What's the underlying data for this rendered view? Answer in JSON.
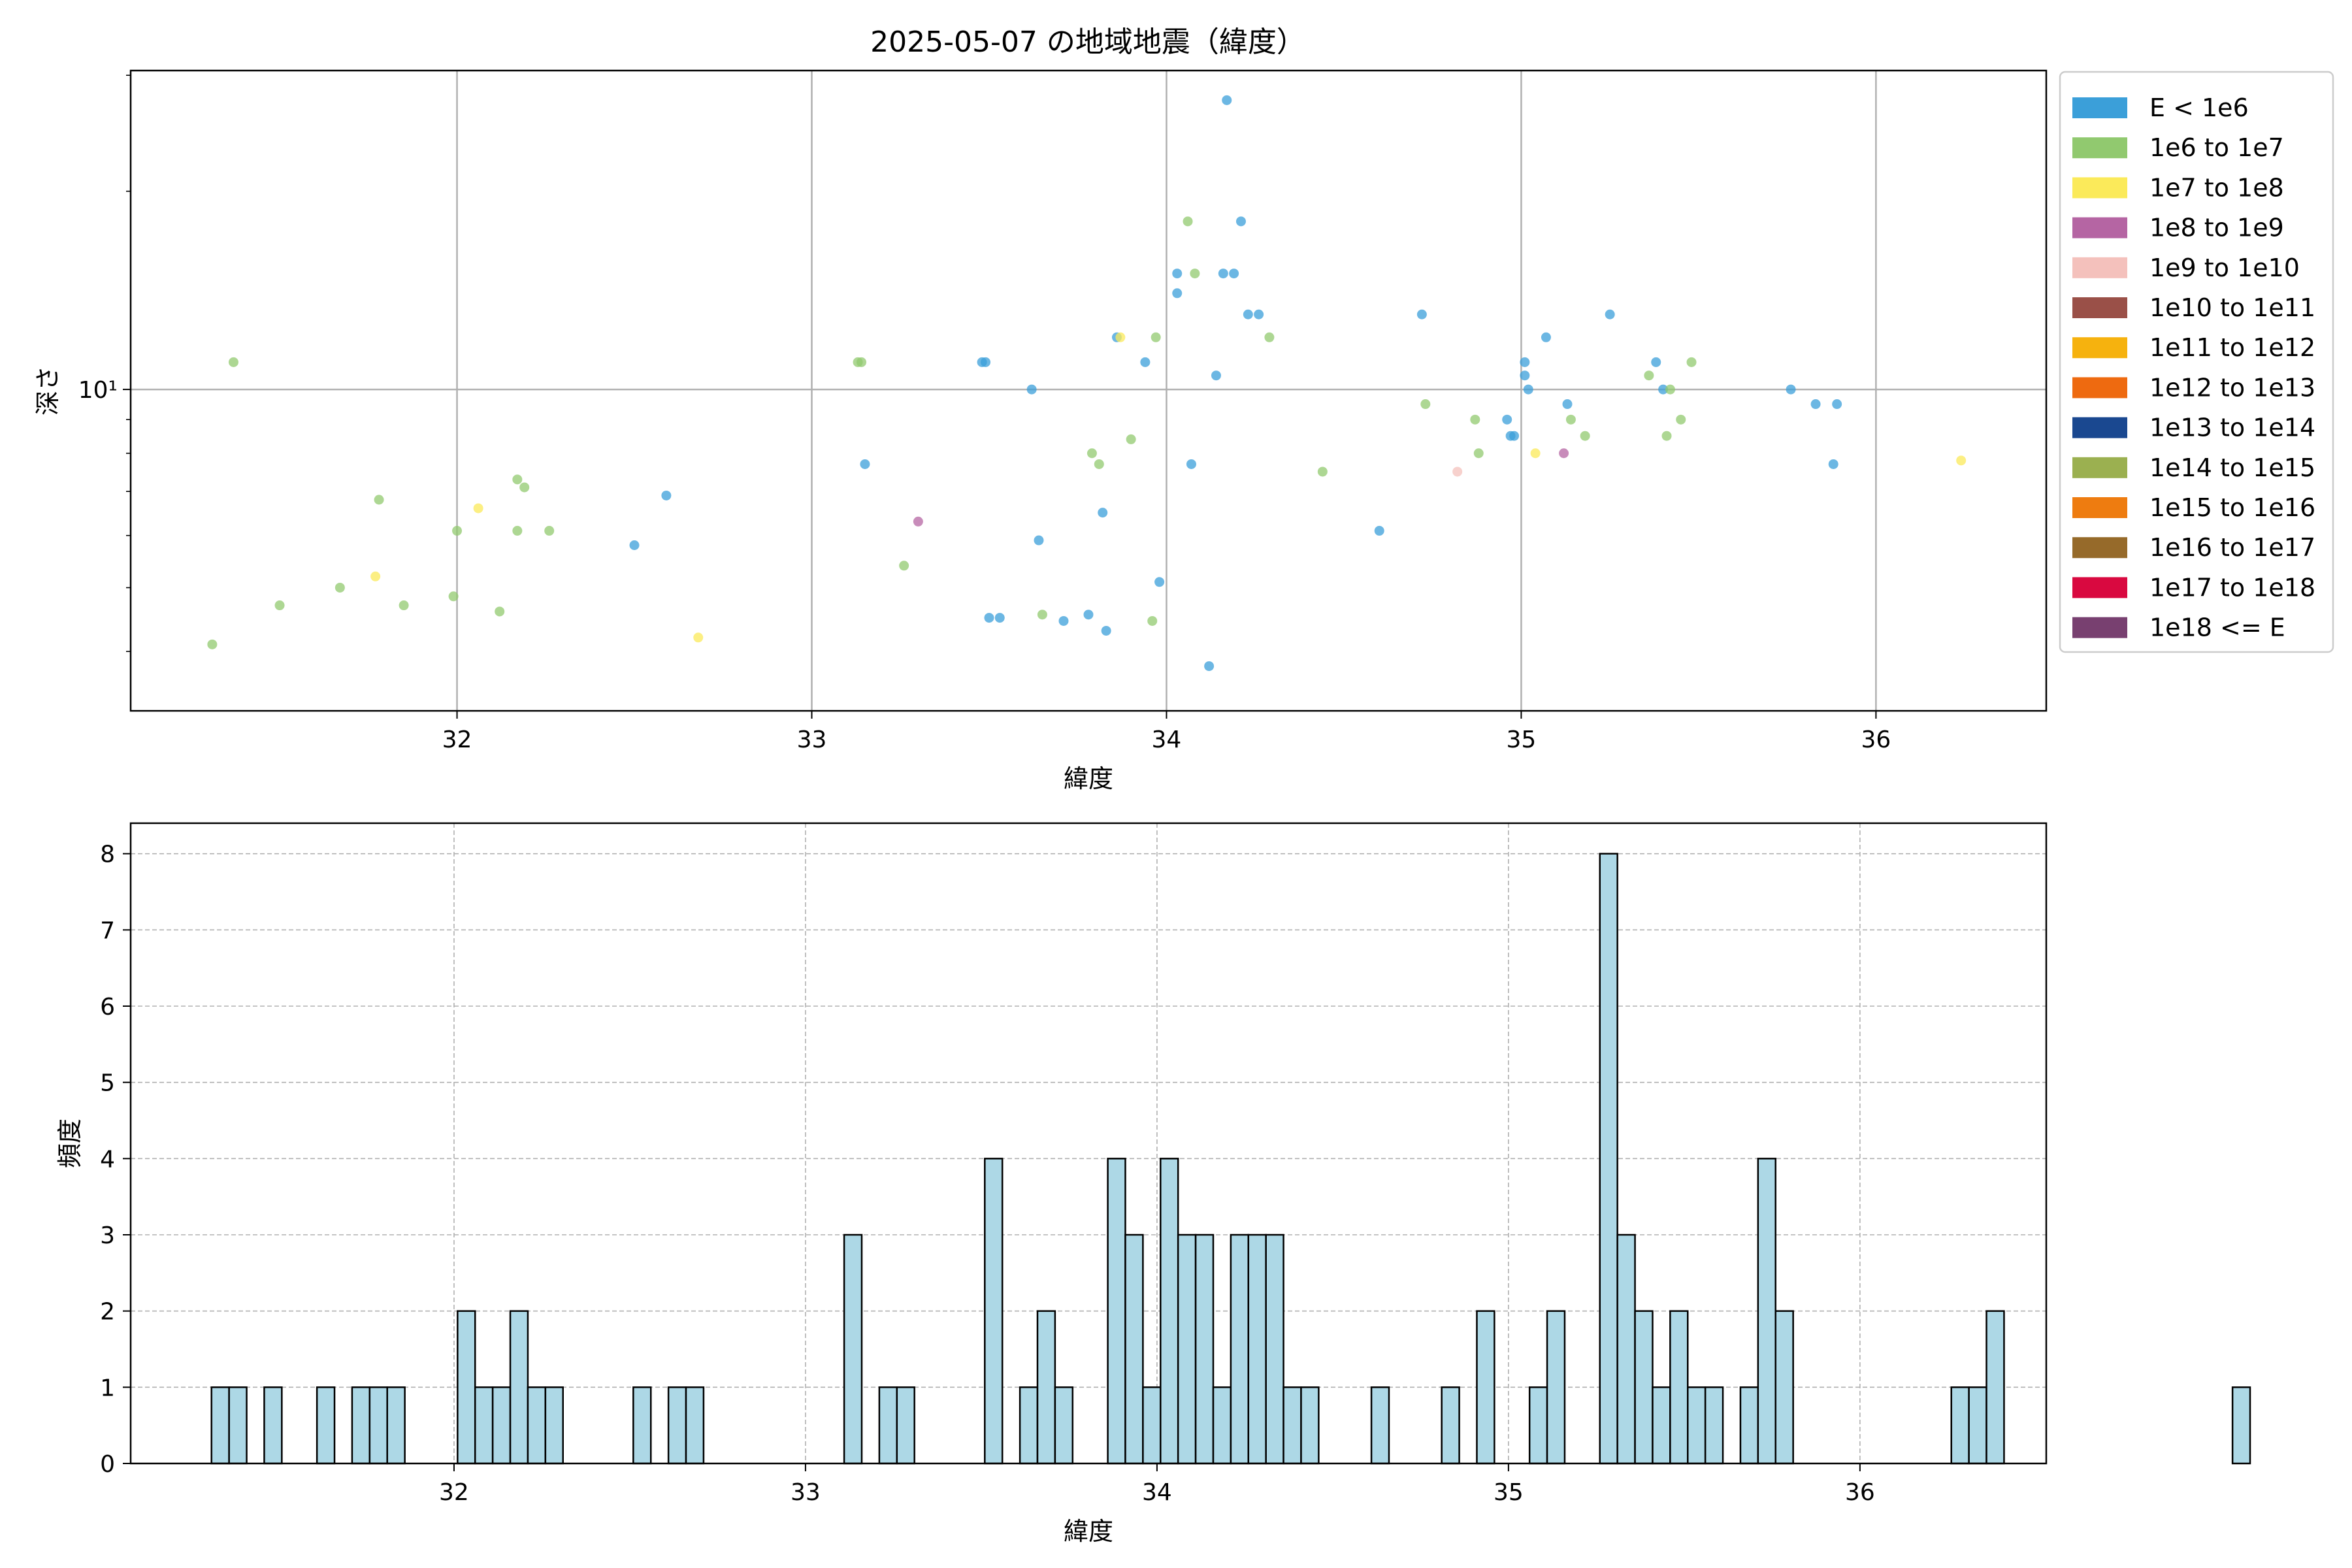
{
  "title": "2025-05-07 の地域地震（緯度）",
  "colors": {
    "hist_fill": "#add8e6",
    "hist_edge": "#000000",
    "grid": "#b0b0b0"
  },
  "chart_data": [
    {
      "type": "scatter",
      "title": "2025-05-07 の地域地震（緯度）",
      "xlabel": "緯度",
      "ylabel": "深さ",
      "xscale": "linear",
      "yscale": "log",
      "xlim": [
        31.08,
        36.48
      ],
      "ylim": [
        3.25,
        30.5
      ],
      "xticks": [
        32,
        33,
        34,
        35,
        36
      ],
      "xtick_labels": [
        "32",
        "33",
        "34",
        "35",
        "36"
      ],
      "yticks": [
        10
      ],
      "ytick_labels": [
        "10¹"
      ],
      "grid": true,
      "legend": {
        "placement": "outside-right",
        "entries": [
          {
            "label": "E < 1e6",
            "color": "#3b9fd9"
          },
          {
            "label": "1e6 to 1e7",
            "color": "#91c96f"
          },
          {
            "label": "1e7 to 1e8",
            "color": "#fbea5a"
          },
          {
            "label": "1e8 to 1e9",
            "color": "#b565a3"
          },
          {
            "label": "1e9 to 1e10",
            "color": "#f4c1bc"
          },
          {
            "label": "1e10 to 1e11",
            "color": "#9a5048"
          },
          {
            "label": "1e11 to 1e12",
            "color": "#f6b20e"
          },
          {
            "label": "1e12 to 1e13",
            "color": "#ee6a10"
          },
          {
            "label": "1e13 to 1e14",
            "color": "#1a4890"
          },
          {
            "label": "1e14 to 1e15",
            "color": "#9bb050"
          },
          {
            "label": "1e15 to 1e16",
            "color": "#ee7c10"
          },
          {
            "label": "1e16 to 1e17",
            "color": "#966a2a"
          },
          {
            "label": "1e17 to 1e18",
            "color": "#d90940"
          },
          {
            "label": "1e18 <= E",
            "color": "#784070"
          }
        ]
      },
      "points": [
        {
          "x": 31.31,
          "y": 4.1,
          "c": 1
        },
        {
          "x": 31.37,
          "y": 11.0,
          "c": 1
        },
        {
          "x": 31.5,
          "y": 4.7,
          "c": 1
        },
        {
          "x": 31.67,
          "y": 5.0,
          "c": 1
        },
        {
          "x": 31.77,
          "y": 5.2,
          "c": 2
        },
        {
          "x": 31.78,
          "y": 6.8,
          "c": 1
        },
        {
          "x": 31.85,
          "y": 4.7,
          "c": 1
        },
        {
          "x": 31.99,
          "y": 4.85,
          "c": 1
        },
        {
          "x": 32.0,
          "y": 6.1,
          "c": 1
        },
        {
          "x": 32.06,
          "y": 6.6,
          "c": 2
        },
        {
          "x": 32.12,
          "y": 4.6,
          "c": 1
        },
        {
          "x": 32.17,
          "y": 6.1,
          "c": 1
        },
        {
          "x": 32.17,
          "y": 7.3,
          "c": 1
        },
        {
          "x": 32.19,
          "y": 7.1,
          "c": 1
        },
        {
          "x": 32.26,
          "y": 6.1,
          "c": 1
        },
        {
          "x": 32.5,
          "y": 5.8,
          "c": 0
        },
        {
          "x": 32.59,
          "y": 6.9,
          "c": 0
        },
        {
          "x": 32.68,
          "y": 4.2,
          "c": 2
        },
        {
          "x": 33.13,
          "y": 11.0,
          "c": 1
        },
        {
          "x": 33.14,
          "y": 11.0,
          "c": 1
        },
        {
          "x": 33.15,
          "y": 7.7,
          "c": 0
        },
        {
          "x": 33.26,
          "y": 5.4,
          "c": 1
        },
        {
          "x": 33.3,
          "y": 6.3,
          "c": 3
        },
        {
          "x": 33.48,
          "y": 11.0,
          "c": 0
        },
        {
          "x": 33.49,
          "y": 11.0,
          "c": 0
        },
        {
          "x": 33.5,
          "y": 4.5,
          "c": 0
        },
        {
          "x": 33.53,
          "y": 4.5,
          "c": 0
        },
        {
          "x": 33.62,
          "y": 10.0,
          "c": 0
        },
        {
          "x": 33.64,
          "y": 5.9,
          "c": 0
        },
        {
          "x": 33.65,
          "y": 4.55,
          "c": 1
        },
        {
          "x": 33.71,
          "y": 4.45,
          "c": 0
        },
        {
          "x": 33.78,
          "y": 4.55,
          "c": 0
        },
        {
          "x": 33.79,
          "y": 8.0,
          "c": 1
        },
        {
          "x": 33.81,
          "y": 7.7,
          "c": 1
        },
        {
          "x": 33.82,
          "y": 6.5,
          "c": 0
        },
        {
          "x": 33.83,
          "y": 4.3,
          "c": 0
        },
        {
          "x": 33.86,
          "y": 12.0,
          "c": 0
        },
        {
          "x": 33.87,
          "y": 12.0,
          "c": 2
        },
        {
          "x": 33.9,
          "y": 8.4,
          "c": 1
        },
        {
          "x": 33.94,
          "y": 11.0,
          "c": 0
        },
        {
          "x": 33.96,
          "y": 4.45,
          "c": 1
        },
        {
          "x": 33.97,
          "y": 12.0,
          "c": 1
        },
        {
          "x": 33.98,
          "y": 5.1,
          "c": 0
        },
        {
          "x": 34.03,
          "y": 14.0,
          "c": 0
        },
        {
          "x": 34.03,
          "y": 15.0,
          "c": 0
        },
        {
          "x": 34.06,
          "y": 18.0,
          "c": 1
        },
        {
          "x": 34.07,
          "y": 7.7,
          "c": 0
        },
        {
          "x": 34.08,
          "y": 15.0,
          "c": 1
        },
        {
          "x": 34.12,
          "y": 3.8,
          "c": 0
        },
        {
          "x": 34.14,
          "y": 10.5,
          "c": 0
        },
        {
          "x": 34.16,
          "y": 15.0,
          "c": 0
        },
        {
          "x": 34.17,
          "y": 27.5,
          "c": 0
        },
        {
          "x": 34.19,
          "y": 15.0,
          "c": 0
        },
        {
          "x": 34.21,
          "y": 18.0,
          "c": 0
        },
        {
          "x": 34.23,
          "y": 13.0,
          "c": 0
        },
        {
          "x": 34.26,
          "y": 13.0,
          "c": 0
        },
        {
          "x": 34.29,
          "y": 12.0,
          "c": 1
        },
        {
          "x": 34.44,
          "y": 7.5,
          "c": 1
        },
        {
          "x": 34.6,
          "y": 6.1,
          "c": 0
        },
        {
          "x": 34.72,
          "y": 13.0,
          "c": 0
        },
        {
          "x": 34.73,
          "y": 9.5,
          "c": 1
        },
        {
          "x": 34.82,
          "y": 7.5,
          "c": 4
        },
        {
          "x": 34.87,
          "y": 9.0,
          "c": 1
        },
        {
          "x": 34.88,
          "y": 8.0,
          "c": 1
        },
        {
          "x": 34.96,
          "y": 9.0,
          "c": 0
        },
        {
          "x": 34.97,
          "y": 8.5,
          "c": 0
        },
        {
          "x": 34.98,
          "y": 8.5,
          "c": 0
        },
        {
          "x": 35.01,
          "y": 11.0,
          "c": 0
        },
        {
          "x": 35.01,
          "y": 10.5,
          "c": 0
        },
        {
          "x": 35.02,
          "y": 10.0,
          "c": 0
        },
        {
          "x": 35.04,
          "y": 8.0,
          "c": 2
        },
        {
          "x": 35.07,
          "y": 12.0,
          "c": 0
        },
        {
          "x": 35.12,
          "y": 8.0,
          "c": 3
        },
        {
          "x": 35.13,
          "y": 9.5,
          "c": 0
        },
        {
          "x": 35.14,
          "y": 9.0,
          "c": 1
        },
        {
          "x": 35.18,
          "y": 8.5,
          "c": 1
        },
        {
          "x": 35.25,
          "y": 13.0,
          "c": 0
        },
        {
          "x": 35.36,
          "y": 10.5,
          "c": 1
        },
        {
          "x": 35.38,
          "y": 11.0,
          "c": 0
        },
        {
          "x": 35.4,
          "y": 10.0,
          "c": 0
        },
        {
          "x": 35.41,
          "y": 8.5,
          "c": 1
        },
        {
          "x": 35.42,
          "y": 10.0,
          "c": 1
        },
        {
          "x": 35.45,
          "y": 9.0,
          "c": 1
        },
        {
          "x": 35.48,
          "y": 11.0,
          "c": 1
        },
        {
          "x": 35.76,
          "y": 10.0,
          "c": 0
        },
        {
          "x": 35.83,
          "y": 9.5,
          "c": 0
        },
        {
          "x": 35.88,
          "y": 7.7,
          "c": 0
        },
        {
          "x": 35.89,
          "y": 9.5,
          "c": 0
        },
        {
          "x": 36.24,
          "y": 7.8,
          "c": 2
        }
      ]
    },
    {
      "type": "bar",
      "subtype": "histogram",
      "xlabel": "緯度",
      "ylabel": "頻度",
      "xlim": [
        31.08,
        36.53
      ],
      "ylim": [
        0,
        8.4
      ],
      "xticks": [
        32,
        33,
        34,
        35,
        36
      ],
      "xtick_labels": [
        "32",
        "33",
        "34",
        "35",
        "36"
      ],
      "yticks": [
        0,
        1,
        2,
        3,
        4,
        5,
        6,
        7,
        8
      ],
      "ytick_labels": [
        "0",
        "1",
        "2",
        "3",
        "4",
        "5",
        "6",
        "7",
        "8"
      ],
      "grid": true,
      "bin_start": 31.31,
      "bin_width": 0.05,
      "counts": [
        1,
        1,
        0,
        1,
        0,
        0,
        1,
        0,
        1,
        1,
        1,
        0,
        0,
        0,
        2,
        1,
        1,
        2,
        1,
        1,
        0,
        0,
        0,
        0,
        1,
        0,
        1,
        1,
        0,
        0,
        0,
        0,
        0,
        0,
        0,
        0,
        3,
        0,
        1,
        1,
        0,
        0,
        0,
        0,
        4,
        0,
        1,
        2,
        1,
        0,
        0,
        4,
        3,
        1,
        4,
        3,
        3,
        1,
        3,
        3,
        3,
        1,
        1,
        0,
        0,
        0,
        1,
        0,
        0,
        0,
        1,
        0,
        2,
        0,
        0,
        1,
        2,
        0,
        0,
        8,
        3,
        2,
        1,
        2,
        1,
        1,
        0,
        1,
        4,
        2,
        0,
        0,
        0,
        0,
        0,
        0,
        0,
        0,
        0,
        1,
        1,
        2,
        0,
        0,
        0,
        0,
        0,
        0,
        0,
        0,
        0,
        0,
        0,
        0,
        0,
        1
      ]
    }
  ]
}
